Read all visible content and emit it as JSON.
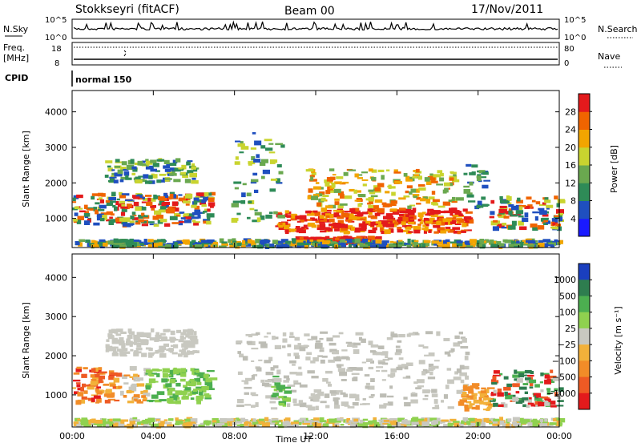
{
  "header": {
    "station": "Stokkseyri (fitACF)",
    "beam": "Beam 00",
    "date": "17/Nov/2011"
  },
  "top_panels": {
    "nsky_label": "N.Sky",
    "nsearch_label": "N.Search",
    "count_ticks": [
      "10^5",
      "10^0"
    ],
    "freq_label_line1": "Freq.",
    "freq_label_line2": "[MHz]",
    "freq_ticks": [
      "18",
      "8"
    ],
    "nave_label": "Nave",
    "nave_ticks": [
      "80",
      "0"
    ],
    "cpid_label": "CPID",
    "cpid_value": "normal 150"
  },
  "chart_data": [
    {
      "type": "heatmap",
      "name": "power",
      "ylabel": "Slant Range [km]",
      "xlabel": "Time UT",
      "y_ticks": [
        1000,
        2000,
        3000,
        4000
      ],
      "ylim": [
        180,
        4600
      ],
      "x_ticks": [
        "00:00",
        "04:00",
        "08:00",
        "12:00",
        "16:00",
        "20:00",
        "00:00"
      ],
      "xlim_hours": [
        0,
        24
      ],
      "colorbar": {
        "label": "Power [dB]",
        "ticks": [
          "4",
          "8",
          "12",
          "16",
          "20",
          "24",
          "28"
        ],
        "colors": [
          "#1a1aff",
          "#1f4fbf",
          "#2e8b57",
          "#6aa84f",
          "#c9d42f",
          "#f2a500",
          "#f06400",
          "#e31a1c"
        ]
      }
    },
    {
      "type": "heatmap",
      "name": "velocity",
      "ylabel": "Slant Range [km]",
      "xlabel": "Time UT",
      "y_ticks": [
        1000,
        2000,
        3000,
        4000
      ],
      "ylim": [
        180,
        4600
      ],
      "x_ticks": [
        "00:00",
        "04:00",
        "08:00",
        "12:00",
        "16:00",
        "20:00",
        "00:00"
      ],
      "xlim_hours": [
        0,
        24
      ],
      "colorbar": {
        "label": "Velocity [m s⁻¹]",
        "ticks": [
          "1000",
          "500",
          "100",
          "25",
          "−25",
          "−100",
          "−500",
          "−1000"
        ],
        "colors": [
          "#1a3fbf",
          "#2e7d4f",
          "#4caf50",
          "#8fd14f",
          "#c8c8c0",
          "#f2b13a",
          "#f28c28",
          "#ee5a24",
          "#e31a1c"
        ]
      }
    }
  ],
  "x_axis_title": "Time UT"
}
